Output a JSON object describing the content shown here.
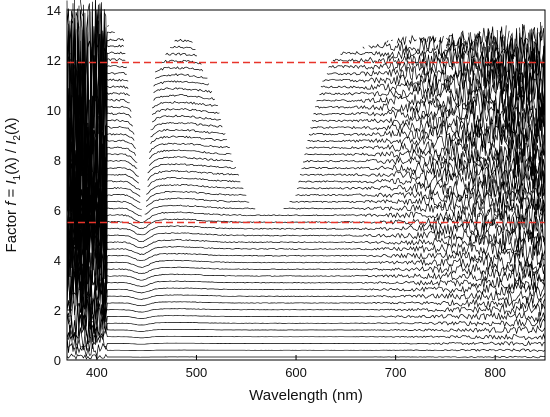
{
  "chart_data": {
    "type": "line",
    "title": "",
    "xlabel": "Wavelength (nm)",
    "ylabel_parts": {
      "prefix": "Factor ",
      "f": "f",
      "eq": " = ",
      "I1": "I",
      "sub1": "1",
      "mid": "(λ) / ",
      "I2": "I",
      "sub2": "2",
      "end": "(λ)"
    },
    "xlim": [
      370,
      850
    ],
    "ylim": [
      0,
      14
    ],
    "x_ticks": [
      400,
      500,
      600,
      700,
      800
    ],
    "y_ticks": [
      0,
      2,
      4,
      6,
      8,
      10,
      12,
      14
    ],
    "series_count": 50,
    "series_color": "#000000",
    "reference_lines": [
      {
        "y": 11.9,
        "color": "#e8342a",
        "style": "dashed"
      },
      {
        "y": 5.5,
        "color": "#e8342a",
        "style": "dashed"
      }
    ],
    "grid": false,
    "legend": "none"
  }
}
